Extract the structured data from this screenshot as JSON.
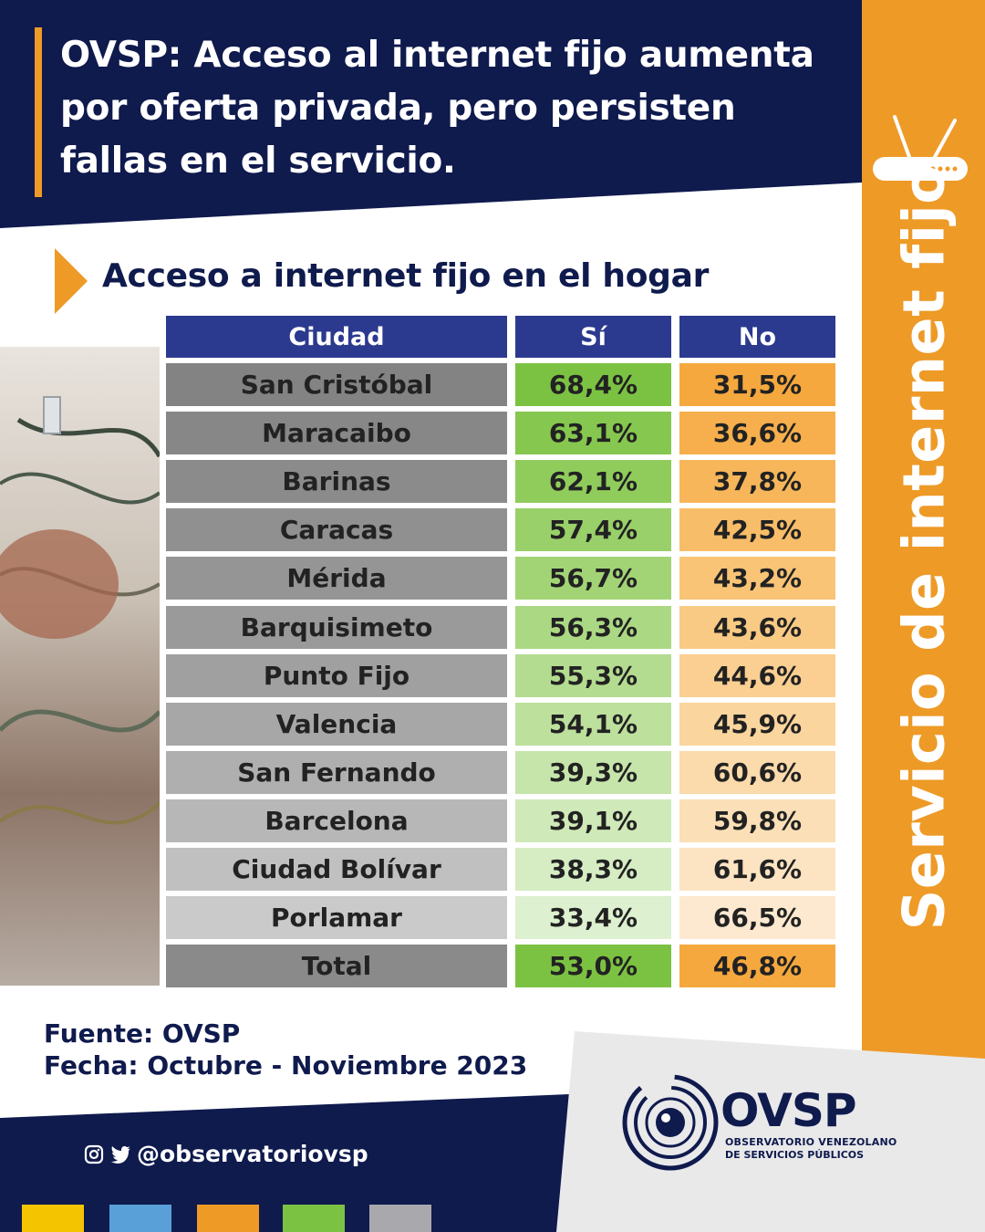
{
  "header": {
    "title": "OVSP: Acceso al internet fijo aumenta por oferta privada, pero persisten fallas en el servicio."
  },
  "side": {
    "title": "Servicio de internet fijo"
  },
  "chart_data": {
    "type": "table",
    "title": "Acceso a internet fijo en el hogar",
    "columns": [
      "Ciudad",
      "Sí",
      "No"
    ],
    "rows": [
      [
        "San Cristóbal",
        "68,4%",
        "31,5%"
      ],
      [
        "Maracaibo",
        "63,1%",
        "36,6%"
      ],
      [
        "Barinas",
        "62,1%",
        "37,8%"
      ],
      [
        "Caracas",
        "57,4%",
        "42,5%"
      ],
      [
        "Mérida",
        "56,7%",
        "43,2%"
      ],
      [
        "Barquisimeto",
        "56,3%",
        "43,6%"
      ],
      [
        "Punto Fijo",
        "55,3%",
        "44,6%"
      ],
      [
        "Valencia",
        "54,1%",
        "45,9%"
      ],
      [
        "San Fernando",
        "39,3%",
        "60,6%"
      ],
      [
        "Barcelona",
        "39,1%",
        "59,8%"
      ],
      [
        "Ciudad Bolívar",
        "38,3%",
        "61,6%"
      ],
      [
        "Porlamar",
        "33,4%",
        "66,5%"
      ],
      [
        "Total",
        "53,0%",
        "46,8%"
      ]
    ],
    "row_colors": {
      "city": [
        "#838383",
        "#878787",
        "#8b8b8b",
        "#909090",
        "#959595",
        "#9a9a9a",
        "#a0a0a0",
        "#a7a7a7",
        "#afafaf",
        "#b7b7b7",
        "#c0c0c0",
        "#cacaca",
        "#8a8a8a"
      ],
      "si": [
        "#7cc242",
        "#86c74f",
        "#90cc5c",
        "#99d069",
        "#a2d476",
        "#abd883",
        "#b4dc90",
        "#bde09d",
        "#c6e5ab",
        "#cfe9b8",
        "#d6edc4",
        "#ddf0cf",
        "#7cc242"
      ],
      "no": [
        "#f5a83e",
        "#f6af4c",
        "#f7b65a",
        "#f8bd68",
        "#f9c476",
        "#f9ca84",
        "#facf91",
        "#fad59e",
        "#fbdaab",
        "#fbdfb7",
        "#fce4c3",
        "#fde9cf",
        "#f5a83e"
      ]
    }
  },
  "footer": {
    "source": "Fuente: OVSP",
    "date": "Fecha: Octubre - Noviembre 2023",
    "social_handle": "@observatoriovsp"
  },
  "logo": {
    "name": "OVSP",
    "line1": "OBSERVATORIO VENEZOLANO",
    "line2": "DE SERVICIOS PÚBLICOS"
  },
  "colors": {
    "navy": "#0f1a4d",
    "orange": "#ee9a27",
    "header_blue": "#2b3a8f",
    "swatches": [
      "#f5c400",
      "#5aa0d8",
      "#ee9a27",
      "#7cc242",
      "#a9a9ad"
    ]
  },
  "icons": [
    "router-icon",
    "instagram-icon",
    "twitter-icon",
    "ovsp-logo-icon"
  ]
}
